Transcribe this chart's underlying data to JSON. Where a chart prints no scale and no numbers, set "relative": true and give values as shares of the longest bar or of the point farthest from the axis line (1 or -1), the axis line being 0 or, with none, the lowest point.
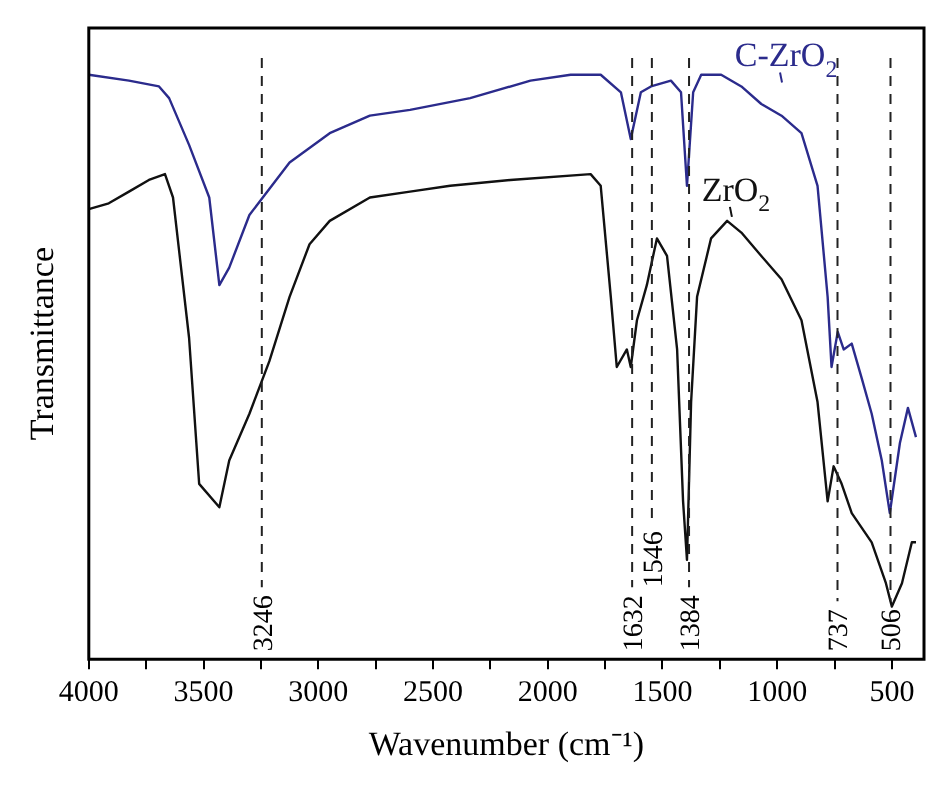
{
  "chart_data": {
    "type": "line",
    "relative": true,
    "xlabel": "Wavenumber (cm⁻¹)",
    "ylabel": "Transmittance",
    "xlim": [
      4000,
      360
    ],
    "xticks": [
      4000,
      {
        "value": 3750,
        "label": null
      },
      3500,
      {
        "value": 3250,
        "label": null
      },
      3000,
      {
        "value": 2750,
        "label": null
      },
      2500,
      {
        "value": 2250,
        "label": null
      },
      2000,
      {
        "value": 1750,
        "label": null
      },
      1500,
      {
        "value": 1250,
        "label": null
      },
      1000,
      {
        "value": 750,
        "label": null
      },
      500
    ],
    "legend": false,
    "grid": false,
    "marker": "none",
    "line_style": "solid",
    "series": [
      {
        "name": "C-ZrO$_{2}$",
        "color": "#2b2b8c",
        "x": [
          4000,
          3825,
          3694,
          3650,
          3563,
          3475,
          3431,
          3388,
          3300,
          3125,
          2950,
          2775,
          2600,
          2338,
          2075,
          1900,
          1769,
          1681,
          1638,
          1594,
          1550,
          1463,
          1419,
          1393,
          1366,
          1331,
          1244,
          1156,
          1069,
          981,
          894,
          824,
          780,
          763,
          736,
          710,
          675,
          631,
          588,
          544,
          509,
          465,
          430,
          395
        ],
        "values": [
          1.0,
          0.99,
          0.98,
          0.96,
          0.88,
          0.79,
          0.64,
          0.67,
          0.76,
          0.85,
          0.9,
          0.93,
          0.94,
          0.96,
          0.99,
          1.0,
          1.0,
          0.97,
          0.89,
          0.97,
          0.98,
          0.99,
          0.97,
          0.81,
          0.97,
          1.0,
          1.0,
          0.98,
          0.95,
          0.93,
          0.9,
          0.81,
          0.62,
          0.5,
          0.56,
          0.53,
          0.54,
          0.48,
          0.42,
          0.34,
          0.25,
          0.37,
          0.43,
          0.38
        ]
      },
      {
        "name": "ZrO$_{2}$",
        "color": "#111111",
        "x": [
          4000,
          3913,
          3825,
          3738,
          3668,
          3633,
          3563,
          3519,
          3431,
          3388,
          3300,
          3213,
          3125,
          3038,
          2950,
          2775,
          2600,
          2425,
          2163,
          1813,
          1769,
          1725,
          1699,
          1655,
          1638,
          1611,
          1568,
          1524,
          1480,
          1436,
          1410,
          1393,
          1375,
          1349,
          1288,
          1218,
          1156,
          1069,
          981,
          894,
          824,
          780,
          754,
          719,
          675,
          588,
          526,
          500,
          456,
          413,
          395
        ],
        "values": [
          0.77,
          0.78,
          0.8,
          0.82,
          0.83,
          0.79,
          0.55,
          0.3,
          0.26,
          0.34,
          0.42,
          0.51,
          0.62,
          0.71,
          0.75,
          0.79,
          0.8,
          0.81,
          0.82,
          0.83,
          0.81,
          0.62,
          0.5,
          0.53,
          0.5,
          0.58,
          0.64,
          0.72,
          0.69,
          0.53,
          0.27,
          0.17,
          0.44,
          0.62,
          0.72,
          0.75,
          0.73,
          0.69,
          0.65,
          0.58,
          0.44,
          0.27,
          0.33,
          0.3,
          0.25,
          0.2,
          0.13,
          0.09,
          0.13,
          0.2,
          0.2
        ]
      }
    ],
    "ref_lines": [
      {
        "axis": "x",
        "value": 3246,
        "label": "3246",
        "line_style": "dashed"
      },
      {
        "axis": "x",
        "value": 1632,
        "label": "1632",
        "line_style": "dashed"
      },
      {
        "axis": "x",
        "value": 1546,
        "label": "1546",
        "line_style": "dashed"
      },
      {
        "axis": "x",
        "value": 1384,
        "label": "1384",
        "line_style": "dashed"
      },
      {
        "axis": "x",
        "value": 737,
        "label": "737",
        "line_style": "dashed"
      },
      {
        "axis": "x",
        "value": 506,
        "label": "506",
        "line_style": "dashed"
      }
    ]
  }
}
